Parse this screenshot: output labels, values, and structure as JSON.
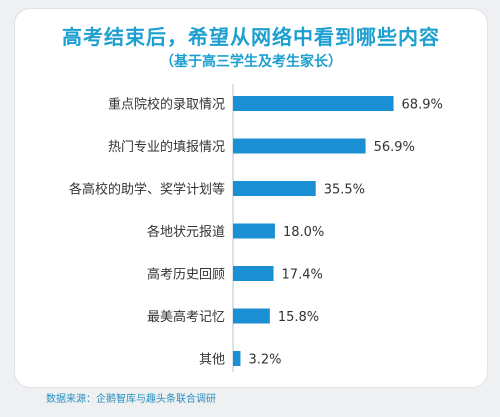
{
  "chart_data": {
    "type": "bar",
    "orientation": "horizontal",
    "title": "高考结束后，希望从网络中看到哪些内容",
    "subtitle": "（基于高三学生及考生家长）",
    "categories": [
      "重点院校的录取情况",
      "热门专业的填报情况",
      "各高校的助学、奖学计划等",
      "各地状元报道",
      "高考历史回顾",
      "最美高考记忆",
      "其他"
    ],
    "values": [
      68.9,
      56.9,
      35.5,
      18.0,
      17.4,
      15.8,
      3.2
    ],
    "value_labels": [
      "68.9%",
      "56.9%",
      "35.5%",
      "18.0%",
      "17.4%",
      "15.8%",
      "3.2%"
    ],
    "xlim": [
      0,
      100
    ],
    "grid": false,
    "bar_color": "#1b8fd3",
    "source": "数据来源：企鹅智库与趣头条联合调研"
  }
}
